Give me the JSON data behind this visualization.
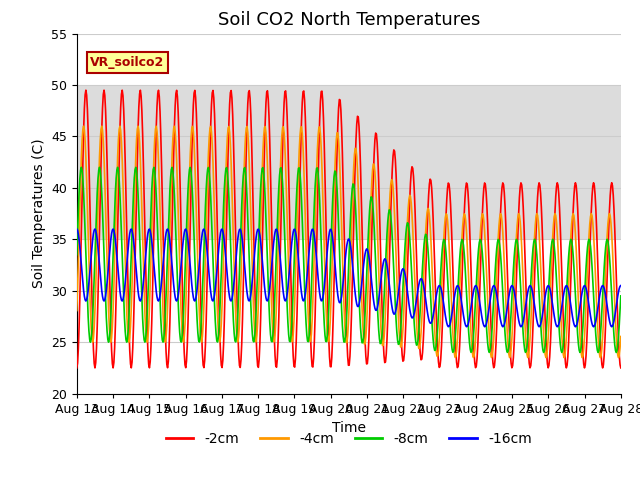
{
  "title": "Soil CO2 North Temperatures",
  "xlabel": "Time",
  "ylabel": "Soil Temperatures (C)",
  "ylim": [
    20,
    55
  ],
  "xlim": [
    0,
    15
  ],
  "x_tick_labels": [
    "Aug 13",
    "Aug 14",
    "Aug 15",
    "Aug 16",
    "Aug 17",
    "Aug 18",
    "Aug 19",
    "Aug 20",
    "Aug 21",
    "Aug 22",
    "Aug 23",
    "Aug 24",
    "Aug 25",
    "Aug 26",
    "Aug 27",
    "Aug 28"
  ],
  "legend_label": "VR_soilco2",
  "legend_box_bg": "#ffff99",
  "legend_box_edge": "#aa0000",
  "series_labels": [
    "-2cm",
    "-4cm",
    "-8cm",
    "-16cm"
  ],
  "series_colors": [
    "#ff0000",
    "#ff9900",
    "#00cc00",
    "#0000ff"
  ],
  "shaded_ymin": 35,
  "shaded_ymax": 50,
  "shaded_color": "#dcdcdc",
  "bg_color": "#ffffff",
  "grid_color": "#cccccc",
  "title_fontsize": 13,
  "label_fontsize": 10,
  "tick_fontsize": 9
}
